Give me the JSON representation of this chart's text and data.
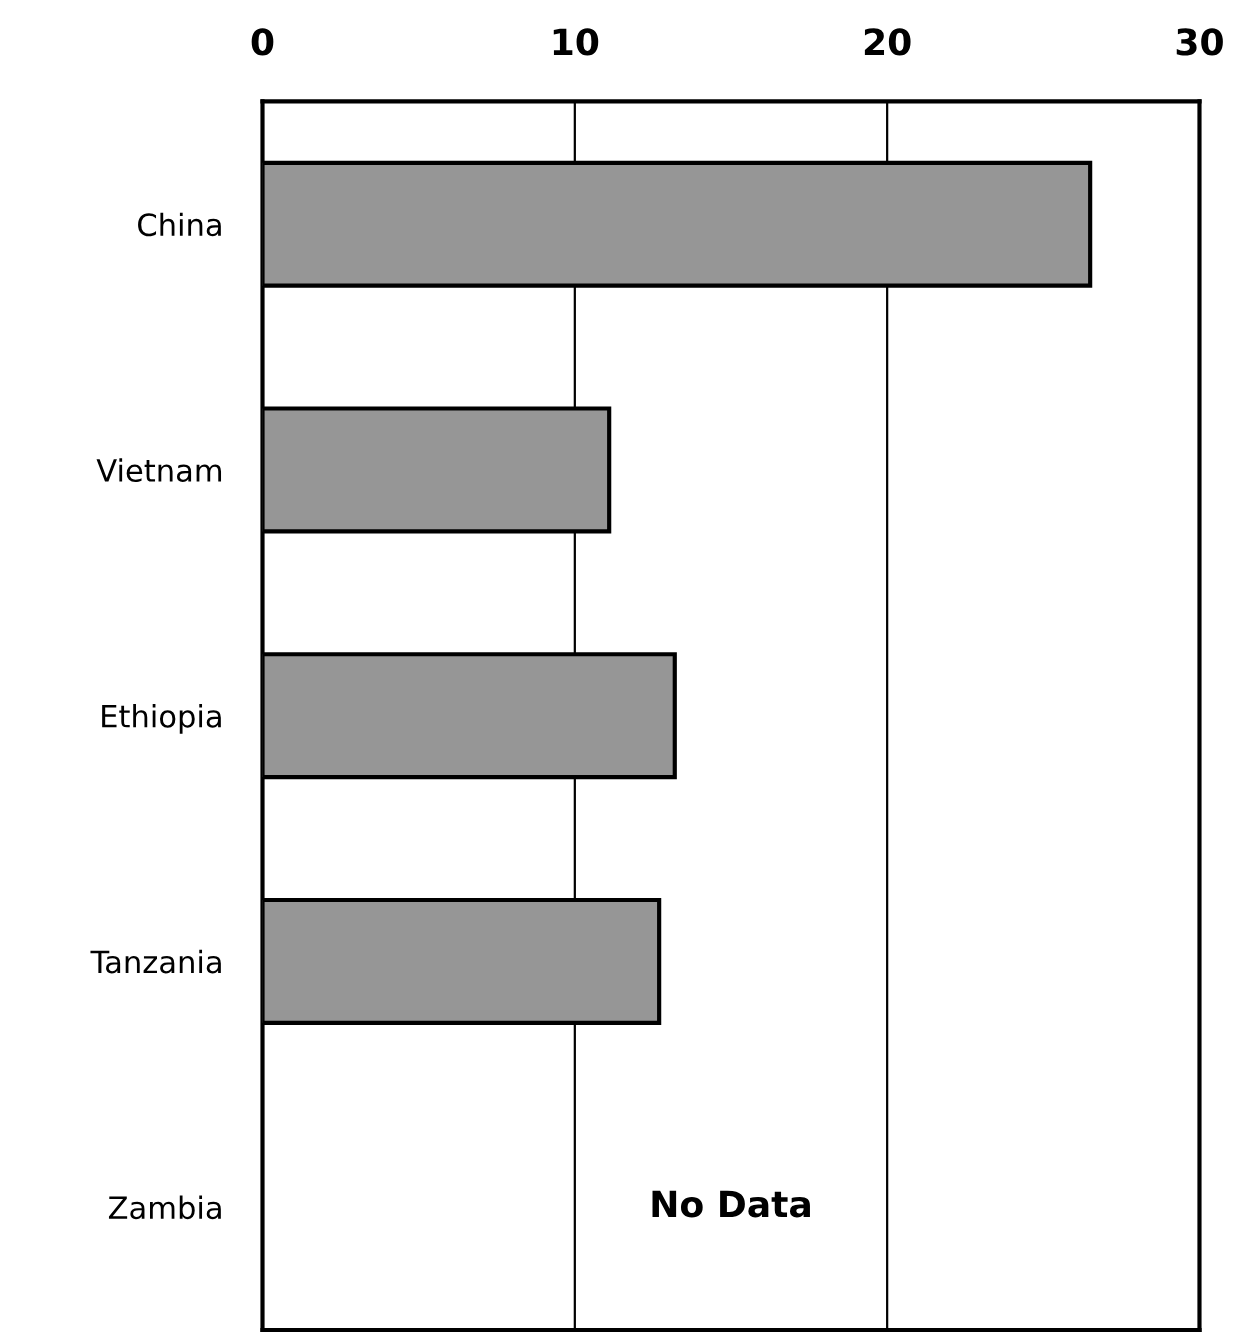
{
  "chart_data": {
    "type": "bar",
    "orientation": "horizontal",
    "categories": [
      "China",
      "Vietnam",
      "Ethiopia",
      "Tanzania",
      "Zambia"
    ],
    "values": [
      26.5,
      11.1,
      13.2,
      12.7,
      null
    ],
    "color": "#969696",
    "xlim": [
      0,
      30
    ],
    "xticks": [
      0,
      10,
      20,
      30
    ],
    "grid": "x",
    "annotations": [
      "No Data"
    ]
  }
}
